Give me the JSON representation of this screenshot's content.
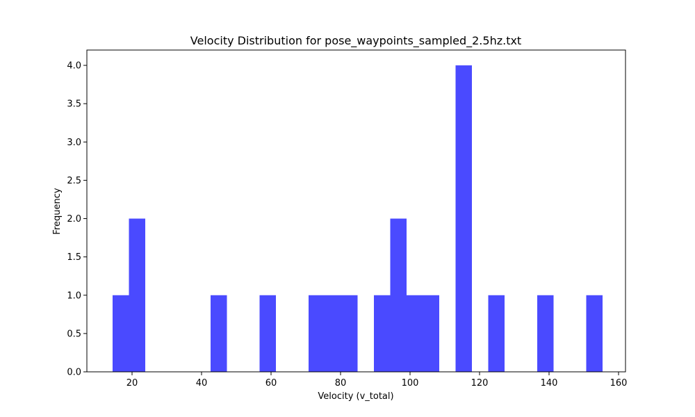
{
  "chart_data": {
    "type": "bar",
    "title": "Velocity Distribution for pose_waypoints_sampled_2.5hz.txt",
    "xlabel": "Velocity (v_total)",
    "ylabel": "Frequency",
    "xlim": [
      7.0,
      162.0
    ],
    "ylim": [
      0,
      4.2
    ],
    "x_ticks": [
      20,
      40,
      60,
      80,
      100,
      120,
      140,
      160
    ],
    "x_tick_labels": [
      "20",
      "40",
      "60",
      "80",
      "100",
      "120",
      "140",
      "160"
    ],
    "y_ticks": [
      0,
      0.5,
      1.0,
      1.5,
      2.0,
      2.5,
      3.0,
      3.5,
      4.0
    ],
    "y_tick_labels": [
      "0.0",
      "0.5",
      "1.0",
      "1.5",
      "2.0",
      "2.5",
      "3.0",
      "3.5",
      "4.0"
    ],
    "bar_color": "#4a4aff",
    "bins": [
      {
        "x0": 14.4,
        "x1": 19.1,
        "value": 1
      },
      {
        "x0": 19.1,
        "x1": 23.8,
        "value": 2
      },
      {
        "x0": 42.6,
        "x1": 47.3,
        "value": 1
      },
      {
        "x0": 56.7,
        "x1": 61.4,
        "value": 1
      },
      {
        "x0": 70.8,
        "x1": 75.5,
        "value": 1
      },
      {
        "x0": 75.5,
        "x1": 80.2,
        "value": 1
      },
      {
        "x0": 80.2,
        "x1": 84.9,
        "value": 1
      },
      {
        "x0": 89.6,
        "x1": 94.3,
        "value": 1
      },
      {
        "x0": 94.3,
        "x1": 99.0,
        "value": 2
      },
      {
        "x0": 99.0,
        "x1": 103.7,
        "value": 1
      },
      {
        "x0": 103.7,
        "x1": 108.4,
        "value": 1
      },
      {
        "x0": 113.1,
        "x1": 117.8,
        "value": 4
      },
      {
        "x0": 122.5,
        "x1": 127.2,
        "value": 1
      },
      {
        "x0": 136.6,
        "x1": 141.3,
        "value": 1
      },
      {
        "x0": 150.7,
        "x1": 155.4,
        "value": 1
      }
    ]
  }
}
